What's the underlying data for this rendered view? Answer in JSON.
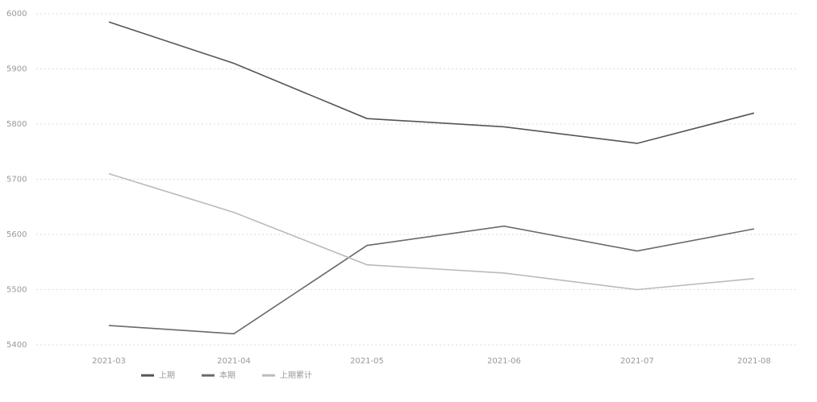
{
  "chart_data": {
    "type": "line",
    "categories": [
      "2021-03",
      "2021-04",
      "2021-05",
      "2021-06",
      "2021-07",
      "2021-08"
    ],
    "series": [
      {
        "name": "上期",
        "color": "#555555",
        "values": [
          5985,
          5910,
          5810,
          5795,
          5765,
          5820
        ]
      },
      {
        "name": "本期",
        "color": "#6a6a6a",
        "values": [
          5435,
          5420,
          5580,
          5615,
          5570,
          5610
        ]
      },
      {
        "name": "上期累计",
        "color": "#bbbbbb",
        "values": [
          5710,
          5640,
          5545,
          5530,
          5500,
          5520
        ]
      }
    ],
    "ylim": [
      5400,
      6000
    ],
    "yticks": [
      5400,
      5500,
      5600,
      5700,
      5800,
      5900,
      6000
    ],
    "grid": true
  }
}
